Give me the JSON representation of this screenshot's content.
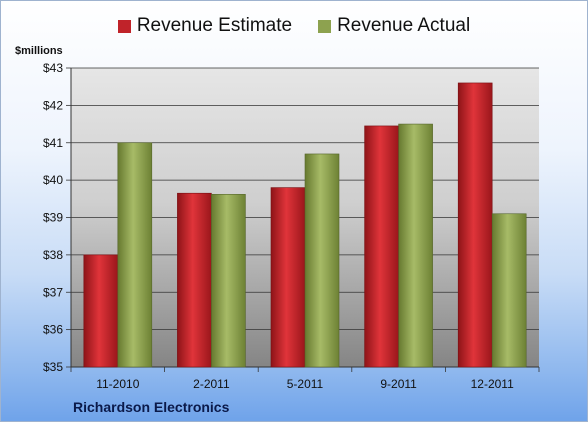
{
  "colors": {
    "estimate": "#c0232a",
    "actual": "#8da24f",
    "plot_bg_top": "#e3e3e3",
    "plot_bg_bottom": "#8a8a8a"
  },
  "company": "Richardson Electronics",
  "chart_data": {
    "type": "bar",
    "title": "",
    "ylabel": "$millions",
    "xlabel": "",
    "ylim": [
      35,
      43
    ],
    "yticks": [
      "$35",
      "$36",
      "$37",
      "$38",
      "$39",
      "$40",
      "$41",
      "$42",
      "$43"
    ],
    "categories": [
      "11-2010",
      "2-2011",
      "5-2011",
      "9-2011",
      "12-2011"
    ],
    "series": [
      {
        "name": "Revenue Estimate",
        "values": [
          38.0,
          39.65,
          39.8,
          41.45,
          42.6
        ]
      },
      {
        "name": "Revenue Actual",
        "values": [
          41.0,
          39.62,
          40.7,
          41.5,
          39.1
        ]
      }
    ],
    "legend": "top-center",
    "grid": true
  }
}
